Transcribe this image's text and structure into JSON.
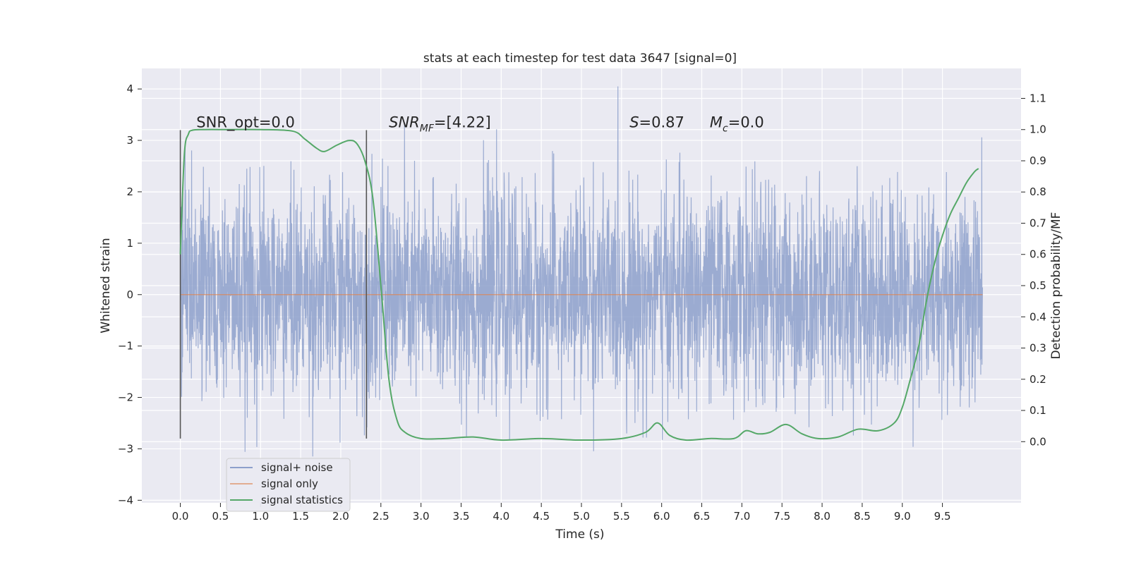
{
  "chart_data": {
    "type": "line",
    "title": "stats at each timestep for test data 3647 [signal=0]",
    "xlabel": "Time (s)",
    "ylabel": "Whitened strain",
    "y2label": "Detection probability/MF",
    "xlim": [
      -0.48,
      10.48
    ],
    "ylim": [
      -4.05,
      4.4
    ],
    "y2lim": [
      -0.196,
      1.196
    ],
    "xticks": [
      0.0,
      0.5,
      1.0,
      1.5,
      2.0,
      2.5,
      3.0,
      3.5,
      4.0,
      4.5,
      5.0,
      5.5,
      6.0,
      6.5,
      7.0,
      7.5,
      8.0,
      8.5,
      9.0,
      9.5
    ],
    "xtick_labels": [
      "0.0",
      "0.5",
      "1.0",
      "1.5",
      "2.0",
      "2.5",
      "3.0",
      "3.5",
      "4.0",
      "4.5",
      "5.0",
      "5.5",
      "6.0",
      "6.5",
      "7.0",
      "7.5",
      "8.0",
      "8.5",
      "9.0",
      "9.5"
    ],
    "yticks": [
      -4,
      -3,
      -2,
      -1,
      0,
      1,
      2,
      3,
      4
    ],
    "ytick_labels": [
      "−4",
      "−3",
      "−2",
      "−1",
      "0",
      "1",
      "2",
      "3",
      "4"
    ],
    "y2ticks": [
      0.0,
      0.1,
      0.2,
      0.3,
      0.4,
      0.5,
      0.6,
      0.7,
      0.8,
      0.9,
      1.0,
      1.1
    ],
    "y2tick_labels": [
      "0.0",
      "0.1",
      "0.2",
      "0.3",
      "0.4",
      "0.5",
      "0.6",
      "0.7",
      "0.8",
      "0.9",
      "1.0",
      "1.1"
    ],
    "grid": true,
    "legend_position": "lower-left",
    "series": [
      {
        "name": "signal+ noise",
        "color": "#8da0cb",
        "axis": "left",
        "x_range": [
          0.0,
          10.0
        ],
        "typical_amplitude": 1.4,
        "y_max": 4.05,
        "y_min": -3.55,
        "note_values": "dense noise trace, values not individually readable"
      },
      {
        "name": "signal only",
        "color": "#dd8452",
        "axis": "left",
        "x": [
          0.0,
          10.0
        ],
        "y": [
          0.0,
          0.0
        ]
      },
      {
        "name": "signal statistics",
        "color": "#55a868",
        "axis": "right",
        "x": [
          0.0,
          0.05,
          0.1,
          0.15,
          0.3,
          0.6,
          1.0,
          1.4,
          1.55,
          1.7,
          1.8,
          1.95,
          2.1,
          2.2,
          2.3,
          2.4,
          2.5,
          2.6,
          2.7,
          2.8,
          3.0,
          3.3,
          3.65,
          4.0,
          4.5,
          5.0,
          5.5,
          5.8,
          5.95,
          6.1,
          6.3,
          6.6,
          6.9,
          7.05,
          7.2,
          7.35,
          7.55,
          7.75,
          7.95,
          8.2,
          8.45,
          8.7,
          8.9,
          9.0,
          9.1,
          9.2,
          9.3,
          9.4,
          9.5,
          9.6,
          9.7,
          9.8,
          9.9,
          9.95
        ],
        "y": [
          0.6,
          0.92,
          0.985,
          0.998,
          1.0,
          1.0,
          1.0,
          0.995,
          0.97,
          0.94,
          0.93,
          0.95,
          0.965,
          0.955,
          0.9,
          0.78,
          0.5,
          0.2,
          0.07,
          0.03,
          0.01,
          0.01,
          0.015,
          0.005,
          0.01,
          0.005,
          0.01,
          0.03,
          0.06,
          0.02,
          0.005,
          0.01,
          0.01,
          0.035,
          0.025,
          0.03,
          0.055,
          0.025,
          0.01,
          0.015,
          0.04,
          0.035,
          0.06,
          0.11,
          0.2,
          0.3,
          0.45,
          0.57,
          0.66,
          0.73,
          0.78,
          0.83,
          0.865,
          0.875
        ]
      }
    ],
    "vlines": [
      {
        "x": 0.0,
        "y_range": [
          -2.8,
          3.2
        ],
        "color": "#555555"
      },
      {
        "x": 2.32,
        "y_range": [
          -2.8,
          3.2
        ],
        "color": "#555555"
      }
    ],
    "annotations": [
      {
        "text": "SNR_opt=0.0",
        "x": 0.2,
        "y": 3.2
      },
      {
        "text": "SNR_MF=[4.22]",
        "x": 2.6,
        "y": 3.2
      },
      {
        "text": "S=0.87",
        "x": 5.6,
        "y": 3.2
      },
      {
        "text": "M_c=0.0",
        "x": 6.6,
        "y": 3.2
      }
    ]
  }
}
